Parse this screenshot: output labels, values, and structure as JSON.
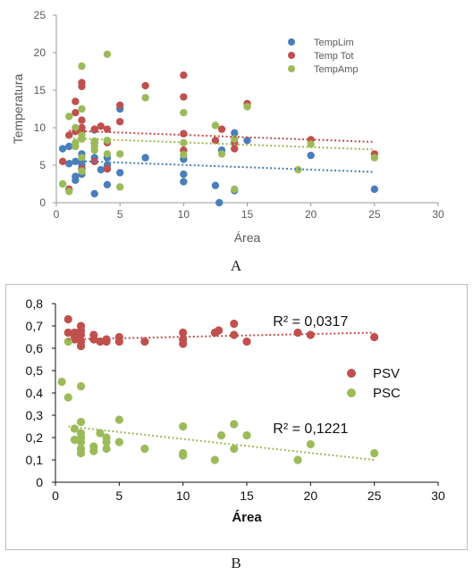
{
  "charts": [
    {
      "id": "A",
      "panel_label": "A",
      "axis_color": "#9a9a9a",
      "tick_color": "#595959",
      "label_color": "#595959",
      "legend_position": "upper-right inside plot"
    },
    {
      "id": "B",
      "panel_label": "B",
      "axis_color": "#111111",
      "tick_color": "#111111",
      "label_color": "#111111",
      "legend_position": "right inside plot"
    }
  ],
  "chart_data": [
    {
      "type": "scatter",
      "xlabel": "Área",
      "ylabel": "Temperatura",
      "xlim": [
        0,
        30
      ],
      "ylim": [
        0,
        25
      ],
      "xticks": [
        "0",
        "5",
        "10",
        "15",
        "20",
        "25",
        "30"
      ],
      "yticks": [
        "0",
        "5",
        "10",
        "15",
        "20",
        "25"
      ],
      "grid": false,
      "trendlines": true,
      "series": [
        {
          "name": "TempLim",
          "color": "#4a7ebb",
          "trend": [
            [
              1,
              5.6
            ],
            [
              25,
              4.1
            ]
          ],
          "points": [
            [
              0.5,
              7.2
            ],
            [
              1,
              7.5
            ],
            [
              1,
              5.2
            ],
            [
              1.5,
              5.5
            ],
            [
              1.5,
              3
            ],
            [
              1.5,
              3.5
            ],
            [
              2,
              4.5
            ],
            [
              2,
              5
            ],
            [
              2,
              5.5
            ],
            [
              2,
              6.5
            ],
            [
              2,
              3.8
            ],
            [
              3,
              1.2
            ],
            [
              3,
              6
            ],
            [
              3,
              9.7
            ],
            [
              3.5,
              4.4
            ],
            [
              4,
              2.4
            ],
            [
              4,
              5
            ],
            [
              4,
              6
            ],
            [
              5,
              12.5
            ],
            [
              5,
              4
            ],
            [
              7,
              6
            ],
            [
              10,
              2.8
            ],
            [
              10,
              3.8
            ],
            [
              10,
              5.8
            ],
            [
              12.5,
              2.3
            ],
            [
              12.8,
              0
            ],
            [
              13,
              7
            ],
            [
              14,
              9.3
            ],
            [
              14,
              1.6
            ],
            [
              15,
              8.3
            ],
            [
              20,
              6.3
            ],
            [
              25,
              1.8
            ]
          ]
        },
        {
          "name": "Temp Tot",
          "color": "#c0504d",
          "trend": [
            [
              1,
              9.6
            ],
            [
              25,
              8.1
            ]
          ],
          "points": [
            [
              0.5,
              5.5
            ],
            [
              1,
              9
            ],
            [
              1,
              1.8
            ],
            [
              1.5,
              13.5
            ],
            [
              1.5,
              12
            ],
            [
              1.5,
              9.5
            ],
            [
              2,
              16
            ],
            [
              2,
              15.5
            ],
            [
              2,
              11
            ],
            [
              2,
              10
            ],
            [
              2,
              9.5
            ],
            [
              2,
              4.5
            ],
            [
              3,
              9.8
            ],
            [
              3,
              8
            ],
            [
              3,
              5.5
            ],
            [
              3.5,
              10.2
            ],
            [
              4,
              9.8
            ],
            [
              4,
              8
            ],
            [
              4,
              4.5
            ],
            [
              5,
              13
            ],
            [
              5,
              10.8
            ],
            [
              7,
              15.6
            ],
            [
              10,
              17
            ],
            [
              10,
              14.1
            ],
            [
              10,
              9.2
            ],
            [
              10,
              7
            ],
            [
              12.5,
              8.3
            ],
            [
              13,
              9.8
            ],
            [
              14,
              8
            ],
            [
              14,
              7.2
            ],
            [
              15,
              13.2
            ],
            [
              20,
              8.4
            ],
            [
              25,
              6.5
            ]
          ]
        },
        {
          "name": "TempAmp",
          "color": "#9bbb59",
          "trend": [
            [
              1,
              8.6
            ],
            [
              25,
              7.1
            ]
          ],
          "points": [
            [
              0.5,
              2.5
            ],
            [
              1,
              11.5
            ],
            [
              1,
              1.5
            ],
            [
              1.5,
              10
            ],
            [
              1.5,
              8
            ],
            [
              1.5,
              7.5
            ],
            [
              2,
              18.2
            ],
            [
              2,
              12.5
            ],
            [
              2,
              9
            ],
            [
              2,
              8.5
            ],
            [
              2,
              6
            ],
            [
              2,
              4.2
            ],
            [
              3,
              8.2
            ],
            [
              3,
              7.5
            ],
            [
              3,
              7
            ],
            [
              4,
              19.8
            ],
            [
              4,
              8.3
            ],
            [
              4,
              6.5
            ],
            [
              5,
              6.5
            ],
            [
              5,
              2.1
            ],
            [
              7,
              14
            ],
            [
              10,
              12
            ],
            [
              10,
              8
            ],
            [
              10,
              6.4
            ],
            [
              12.5,
              10.3
            ],
            [
              13,
              6.5
            ],
            [
              14,
              1.8
            ],
            [
              14,
              8.5
            ],
            [
              15,
              12.8
            ],
            [
              19,
              4.4
            ],
            [
              20,
              7.8
            ],
            [
              25,
              6
            ]
          ]
        }
      ]
    },
    {
      "type": "scatter",
      "xlabel": "Área",
      "ylabel": "",
      "xlim": [
        0,
        30
      ],
      "ylim": [
        0,
        0.8
      ],
      "xticks": [
        "0",
        "5",
        "10",
        "15",
        "20",
        "25",
        "30"
      ],
      "yticks": [
        "0",
        "0,1",
        "0,2",
        "0,3",
        "0,4",
        "0,5",
        "0,6",
        "0,7",
        "0,8"
      ],
      "grid": false,
      "trendlines": true,
      "annotations": [
        {
          "text": "R² = 0,0317",
          "x": 20,
          "y": 0.725
        },
        {
          "text": "R² = 0,1221",
          "x": 20,
          "y": 0.245
        }
      ],
      "series": [
        {
          "name": "PSV",
          "color": "#c0504d",
          "trend": [
            [
              1,
              0.64
            ],
            [
              25,
              0.67
            ]
          ],
          "points": [
            [
              1,
              0.73
            ],
            [
              1,
              0.67
            ],
            [
              1.5,
              0.67
            ],
            [
              1.5,
              0.65
            ],
            [
              1.5,
              0.64
            ],
            [
              2,
              0.7
            ],
            [
              2,
              0.68
            ],
            [
              2,
              0.66
            ],
            [
              2,
              0.63
            ],
            [
              2,
              0.61
            ],
            [
              3,
              0.66
            ],
            [
              3,
              0.64
            ],
            [
              3.5,
              0.63
            ],
            [
              4,
              0.64
            ],
            [
              4,
              0.63
            ],
            [
              5,
              0.65
            ],
            [
              5,
              0.63
            ],
            [
              7,
              0.63
            ],
            [
              10,
              0.67
            ],
            [
              10,
              0.64
            ],
            [
              10,
              0.62
            ],
            [
              12.5,
              0.67
            ],
            [
              12.8,
              0.68
            ],
            [
              14,
              0.71
            ],
            [
              14,
              0.66
            ],
            [
              15,
              0.63
            ],
            [
              19,
              0.67
            ],
            [
              20,
              0.66
            ],
            [
              25,
              0.65
            ]
          ]
        },
        {
          "name": "PSC",
          "color": "#9bbb59",
          "trend": [
            [
              1,
              0.25
            ],
            [
              25,
              0.1
            ]
          ],
          "points": [
            [
              0.5,
              0.45
            ],
            [
              1,
              0.38
            ],
            [
              1,
              0.63
            ],
            [
              1.5,
              0.24
            ],
            [
              1.5,
              0.19
            ],
            [
              2,
              0.43
            ],
            [
              2,
              0.27
            ],
            [
              2,
              0.22
            ],
            [
              2,
              0.2
            ],
            [
              2,
              0.18
            ],
            [
              2,
              0.15
            ],
            [
              2,
              0.13
            ],
            [
              3,
              0.16
            ],
            [
              3,
              0.14
            ],
            [
              3.5,
              0.22
            ],
            [
              4,
              0.2
            ],
            [
              4,
              0.18
            ],
            [
              4,
              0.15
            ],
            [
              5,
              0.28
            ],
            [
              5,
              0.18
            ],
            [
              7,
              0.15
            ],
            [
              10,
              0.25
            ],
            [
              10,
              0.13
            ],
            [
              10,
              0.12
            ],
            [
              12.5,
              0.1
            ],
            [
              13,
              0.21
            ],
            [
              14,
              0.26
            ],
            [
              14,
              0.15
            ],
            [
              15,
              0.21
            ],
            [
              19,
              0.1
            ],
            [
              20,
              0.17
            ],
            [
              25,
              0.13
            ]
          ]
        }
      ]
    }
  ]
}
